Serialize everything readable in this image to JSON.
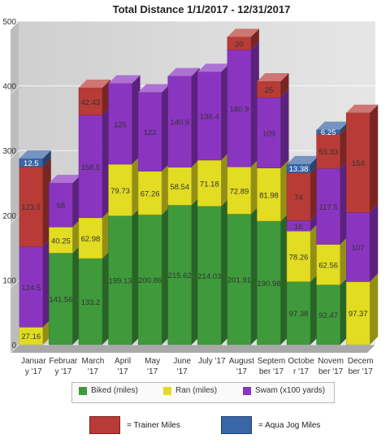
{
  "chart_data": {
    "type": "bar",
    "stacked": true,
    "title": "Total Distance 1/1/2017 - 12/31/2017",
    "xlabel": "",
    "ylabel": "",
    "ylim": [
      0,
      500
    ],
    "yticks": [
      0,
      100,
      200,
      300,
      400,
      500
    ],
    "grid": true,
    "categories": [
      [
        "Januar",
        "y '17"
      ],
      [
        "Februar",
        "y '17"
      ],
      [
        "March",
        "'17"
      ],
      [
        "April",
        "'17"
      ],
      [
        "May",
        "'17"
      ],
      [
        "June",
        "'17"
      ],
      [
        "July '17"
      ],
      [
        "August",
        "'17"
      ],
      [
        "Septem",
        "ber '17"
      ],
      [
        "Octobe",
        "r '17"
      ],
      [
        "Novem",
        "ber '17"
      ],
      [
        "Decem",
        "ber '17"
      ]
    ],
    "series": [
      {
        "name": "Biked (miles)",
        "color": "#3f9a3c",
        "values": [
          0,
          141.56,
          133.2,
          199.13,
          200.86,
          215.62,
          214.03,
          201.91,
          190.98,
          97.38,
          92.47,
          0
        ],
        "labels": [
          "",
          "141.56",
          "133.2",
          "199.13",
          "200.86",
          "215.62",
          "214.03",
          "201.91",
          "190.98",
          "97.38",
          "92.47",
          ""
        ]
      },
      {
        "name": "Ran (miles)",
        "color": "#e2dc22",
        "values": [
          27.16,
          40.25,
          62.98,
          79.73,
          67.26,
          58.54,
          71.18,
          72.89,
          81.98,
          78.26,
          62.56,
          97.37
        ],
        "labels": [
          "27.16",
          "40.25",
          "62.98",
          "79.73",
          "67.26",
          "58.54",
          "71.18",
          "72.89",
          "81.98",
          "78.26",
          "62.56",
          "97.37"
        ]
      },
      {
        "name": "Swam (x100 yards)",
        "color": "#8a35c0",
        "values": [
          124.5,
          68,
          158.5,
          125,
          122,
          140.9,
          136.4,
          180.9,
          109,
          16,
          117.5,
          107
        ],
        "labels": [
          "124.5",
          "68",
          "158.5",
          "125",
          "122",
          "140.9",
          "136.4",
          "180.9",
          "109",
          "16",
          "117.5",
          "107"
        ]
      },
      {
        "name": "= Trainer Miles",
        "color": "#b83b37",
        "values": [
          123.5,
          0,
          42.43,
          0,
          0,
          0,
          0,
          20,
          25,
          74,
          53.33,
          154
        ],
        "labels": [
          "123.5",
          "",
          "42.43",
          "",
          "",
          "",
          "",
          "20",
          "25",
          "74",
          "53.33",
          "154"
        ]
      },
      {
        "name": "= Aqua Jog Miles",
        "color": "#3a66a8",
        "values": [
          12.5,
          0,
          0,
          0,
          0,
          0,
          0,
          0,
          0,
          13.38,
          6.25,
          0
        ],
        "labels": [
          "12.5",
          "",
          "",
          "",
          "",
          "",
          "",
          "",
          "",
          "13.38",
          "6.25",
          ""
        ]
      }
    ],
    "legend_main": [
      "Biked (miles)",
      "Ran (miles)",
      "Swam (x100 yards)"
    ],
    "legend_extra": [
      "= Trainer Miles",
      "= Aqua Jog Miles"
    ]
  }
}
